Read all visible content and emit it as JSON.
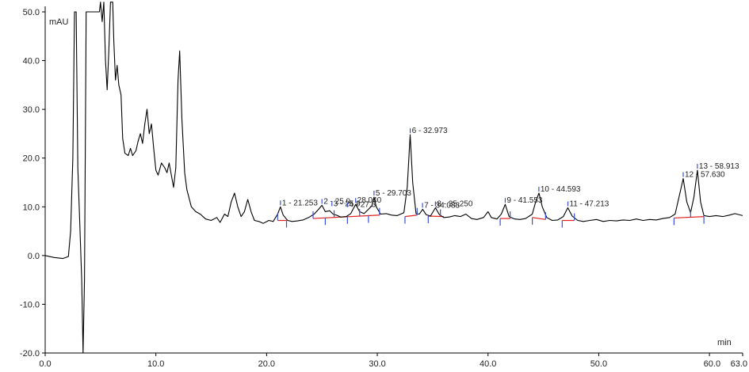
{
  "chart_data": {
    "type": "line",
    "title": "",
    "xlabel": "min",
    "ylabel": "mAU",
    "xlim": [
      0,
      63
    ],
    "ylim": [
      -20,
      50
    ],
    "x_ticks": [
      "0.0",
      "10.0",
      "20.0",
      "30.0",
      "40.0",
      "50.0",
      "60.0",
      "63.0"
    ],
    "y_ticks": [
      "50.0",
      "40.0",
      "30.0",
      "20.0",
      "10.0",
      "0.0",
      "-10.0",
      "-20.0"
    ],
    "grid": false,
    "colors": {
      "trace": "#000000",
      "baseline": "#e0201c",
      "marker": "#3a4fd8",
      "axis": "#000000"
    },
    "trace": [
      [
        0.0,
        0.0
      ],
      [
        0.8,
        -0.4
      ],
      [
        1.6,
        -0.6
      ],
      [
        2.1,
        -0.2
      ],
      [
        2.3,
        5.0
      ],
      [
        2.5,
        20.0
      ],
      [
        2.65,
        50.0
      ],
      [
        2.8,
        50.0
      ],
      [
        2.95,
        18.0
      ],
      [
        3.15,
        5.0
      ],
      [
        3.3,
        -5.0
      ],
      [
        3.42,
        -20.0
      ],
      [
        3.55,
        -5.0
      ],
      [
        3.7,
        50.0
      ],
      [
        4.9,
        50.0
      ],
      [
        5.0,
        52.0
      ],
      [
        5.15,
        48.0
      ],
      [
        5.3,
        52.0
      ],
      [
        5.45,
        40.0
      ],
      [
        5.6,
        34.0
      ],
      [
        5.75,
        42.0
      ],
      [
        5.9,
        52.0
      ],
      [
        6.1,
        52.0
      ],
      [
        6.2,
        44.0
      ],
      [
        6.35,
        36.0
      ],
      [
        6.5,
        39.0
      ],
      [
        6.65,
        35.0
      ],
      [
        6.85,
        33.0
      ],
      [
        7.0,
        24.0
      ],
      [
        7.2,
        21.0
      ],
      [
        7.5,
        20.5
      ],
      [
        7.7,
        22.0
      ],
      [
        7.9,
        20.5
      ],
      [
        8.2,
        21.5
      ],
      [
        8.4,
        23.5
      ],
      [
        8.6,
        25.0
      ],
      [
        8.8,
        23.0
      ],
      [
        9.0,
        27.0
      ],
      [
        9.2,
        30.0
      ],
      [
        9.4,
        25.0
      ],
      [
        9.6,
        27.0
      ],
      [
        9.8,
        22.0
      ],
      [
        10.0,
        17.5
      ],
      [
        10.2,
        16.5
      ],
      [
        10.5,
        19.0
      ],
      [
        10.8,
        18.0
      ],
      [
        11.0,
        17.0
      ],
      [
        11.2,
        19.0
      ],
      [
        11.4,
        16.5
      ],
      [
        11.6,
        14.0
      ],
      [
        11.8,
        18.0
      ],
      [
        12.0,
        36.0
      ],
      [
        12.15,
        42.0
      ],
      [
        12.35,
        28.0
      ],
      [
        12.6,
        17.0
      ],
      [
        12.8,
        13.5
      ],
      [
        13.2,
        10.0
      ],
      [
        13.6,
        9.0
      ],
      [
        14.0,
        8.5
      ],
      [
        14.5,
        7.5
      ],
      [
        15.0,
        7.2
      ],
      [
        15.5,
        7.8
      ],
      [
        15.8,
        6.8
      ],
      [
        16.2,
        8.5
      ],
      [
        16.5,
        8.0
      ],
      [
        16.8,
        11.0
      ],
      [
        17.1,
        12.8
      ],
      [
        17.4,
        10.0
      ],
      [
        17.7,
        8.0
      ],
      [
        18.0,
        9.0
      ],
      [
        18.3,
        11.5
      ],
      [
        18.6,
        9.0
      ],
      [
        18.9,
        7.2
      ],
      [
        19.3,
        7.0
      ],
      [
        19.7,
        6.6
      ],
      [
        20.2,
        7.2
      ],
      [
        20.6,
        7.0
      ],
      [
        21.0,
        8.5
      ],
      [
        21.25,
        10.0
      ],
      [
        21.5,
        8.3
      ],
      [
        21.9,
        7.2
      ],
      [
        22.3,
        7.0
      ],
      [
        22.8,
        7.1
      ],
      [
        23.3,
        7.3
      ],
      [
        23.8,
        7.8
      ],
      [
        24.3,
        8.5
      ],
      [
        24.7,
        9.5
      ],
      [
        25.0,
        10.3
      ],
      [
        25.3,
        9.0
      ],
      [
        25.7,
        9.2
      ],
      [
        26.0,
        8.5
      ],
      [
        26.3,
        8.3
      ],
      [
        26.7,
        7.9
      ],
      [
        27.2,
        8.0
      ],
      [
        27.6,
        8.6
      ],
      [
        28.04,
        10.5
      ],
      [
        28.4,
        9.0
      ],
      [
        28.8,
        8.6
      ],
      [
        29.2,
        9.5
      ],
      [
        29.5,
        10.2
      ],
      [
        29.7,
        12.0
      ],
      [
        29.9,
        10.0
      ],
      [
        30.3,
        8.5
      ],
      [
        30.8,
        8.6
      ],
      [
        31.3,
        8.3
      ],
      [
        31.8,
        8.2
      ],
      [
        32.4,
        8.8
      ],
      [
        32.7,
        14.0
      ],
      [
        32.97,
        24.8
      ],
      [
        33.2,
        15.0
      ],
      [
        33.5,
        8.6
      ],
      [
        33.8,
        8.5
      ],
      [
        34.1,
        9.5
      ],
      [
        34.4,
        8.4
      ],
      [
        34.8,
        8.1
      ],
      [
        35.25,
        9.8
      ],
      [
        35.6,
        8.4
      ],
      [
        36.0,
        7.8
      ],
      [
        36.5,
        7.9
      ],
      [
        37.0,
        8.2
      ],
      [
        37.5,
        8.0
      ],
      [
        38.0,
        8.5
      ],
      [
        38.5,
        7.6
      ],
      [
        39.0,
        7.4
      ],
      [
        39.6,
        7.8
      ],
      [
        40.0,
        9.0
      ],
      [
        40.3,
        7.8
      ],
      [
        40.8,
        7.5
      ],
      [
        41.2,
        8.5
      ],
      [
        41.55,
        10.5
      ],
      [
        41.9,
        8.0
      ],
      [
        42.4,
        7.5
      ],
      [
        42.9,
        7.4
      ],
      [
        43.4,
        7.6
      ],
      [
        44.0,
        8.5
      ],
      [
        44.3,
        11.0
      ],
      [
        44.6,
        12.8
      ],
      [
        44.9,
        10.0
      ],
      [
        45.3,
        7.8
      ],
      [
        45.8,
        7.2
      ],
      [
        46.3,
        7.3
      ],
      [
        46.8,
        8.0
      ],
      [
        47.21,
        9.8
      ],
      [
        47.6,
        8.1
      ],
      [
        48.1,
        7.2
      ],
      [
        48.6,
        7.0
      ],
      [
        49.2,
        7.2
      ],
      [
        49.8,
        7.4
      ],
      [
        50.4,
        7.0
      ],
      [
        51.0,
        7.2
      ],
      [
        51.6,
        7.1
      ],
      [
        52.2,
        7.3
      ],
      [
        52.8,
        7.2
      ],
      [
        53.4,
        7.5
      ],
      [
        54.0,
        7.2
      ],
      [
        54.6,
        7.4
      ],
      [
        55.2,
        7.3
      ],
      [
        55.8,
        7.6
      ],
      [
        56.4,
        7.8
      ],
      [
        56.9,
        8.5
      ],
      [
        57.3,
        12.5
      ],
      [
        57.63,
        15.8
      ],
      [
        57.95,
        11.0
      ],
      [
        58.3,
        8.8
      ],
      [
        58.6,
        12.0
      ],
      [
        58.91,
        17.5
      ],
      [
        59.2,
        11.0
      ],
      [
        59.5,
        8.2
      ],
      [
        60.0,
        8.0
      ],
      [
        60.6,
        8.2
      ],
      [
        61.2,
        8.0
      ],
      [
        61.8,
        8.3
      ],
      [
        62.3,
        8.6
      ],
      [
        63.0,
        8.2
      ]
    ],
    "baselines": [
      [
        [
          21.0,
          7.2
        ],
        [
          21.8,
          7.2
        ]
      ],
      [
        [
          24.2,
          7.6
        ],
        [
          30.2,
          8.3
        ]
      ],
      [
        [
          32.5,
          8.0
        ],
        [
          33.6,
          8.3
        ]
      ],
      [
        [
          34.6,
          8.1
        ],
        [
          36.0,
          8.0
        ]
      ],
      [
        [
          41.1,
          7.6
        ],
        [
          42.0,
          7.6
        ]
      ],
      [
        [
          44.0,
          7.8
        ],
        [
          45.2,
          7.4
        ]
      ],
      [
        [
          46.7,
          7.2
        ],
        [
          47.8,
          7.2
        ]
      ],
      [
        [
          56.8,
          7.7
        ],
        [
          59.5,
          8.0
        ]
      ]
    ],
    "markers": [
      21.0,
      21.8,
      24.2,
      25.3,
      26.1,
      27.3,
      28.4,
      29.2,
      30.2,
      32.5,
      33.6,
      34.6,
      35.7,
      41.1,
      42.0,
      44.0,
      45.2,
      46.7,
      47.8,
      56.8,
      58.3,
      59.5
    ],
    "peaks": [
      {
        "x": 21.253,
        "y": 10.0,
        "label": "1 - 21.253"
      },
      {
        "x": 25.0,
        "y": 10.3,
        "label": "2 - 25.0"
      },
      {
        "x": 25.9,
        "y": 9.8,
        "label": "3 - 25.9"
      },
      {
        "x": 27.3,
        "y": 9.6,
        "label": "4 - 27.3"
      },
      {
        "x": 28.04,
        "y": 10.5,
        "label": "28.040"
      },
      {
        "x": 29.703,
        "y": 12.0,
        "label": "5 - 29.703"
      },
      {
        "x": 32.973,
        "y": 24.8,
        "label": "6 - 32.973"
      },
      {
        "x": 34.083,
        "y": 9.5,
        "label": "7 - 34.083"
      },
      {
        "x": 35.25,
        "y": 9.8,
        "label": "8 - 35.250"
      },
      {
        "x": 41.553,
        "y": 10.5,
        "label": "9 - 41.553"
      },
      {
        "x": 44.593,
        "y": 12.8,
        "label": "10 - 44.593"
      },
      {
        "x": 47.213,
        "y": 9.8,
        "label": "11 - 47.213"
      },
      {
        "x": 57.63,
        "y": 15.8,
        "label": "12 - 57.630"
      },
      {
        "x": 58.913,
        "y": 17.5,
        "label": "13 - 58.913"
      }
    ]
  }
}
